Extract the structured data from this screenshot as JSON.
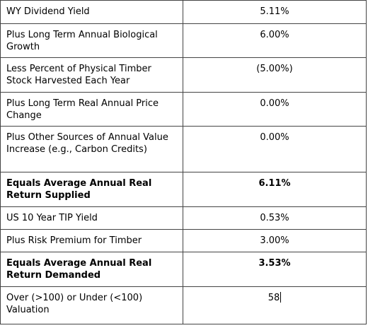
{
  "table": {
    "rows": [
      [
        "WY Dividend Yield",
        "5.11%"
      ],
      [
        "Plus Long Term Annual Biological Growth",
        "6.00%"
      ],
      [
        "Less Percent of Physical Timber Stock Harvested Each Year",
        "(5.00%)"
      ],
      [
        "Plus Long Term Real Annual Price Change",
        "0.00%"
      ],
      [
        "Plus Other Sources of Annual Value Increase (e.g., Carbon Credits)",
        "0.00%"
      ],
      [
        "Equals Average Annual Real Return Supplied",
        "6.11%"
      ],
      [
        "US 10 Year TIP Yield",
        "0.53%"
      ],
      [
        "Plus Risk Premium for Timber",
        "3.00%"
      ],
      [
        "Equals Average Annual Real Return Demanded",
        "3.53%"
      ],
      [
        "Over (>100) or Under (<100) Valuation",
        "58"
      ]
    ]
  }
}
